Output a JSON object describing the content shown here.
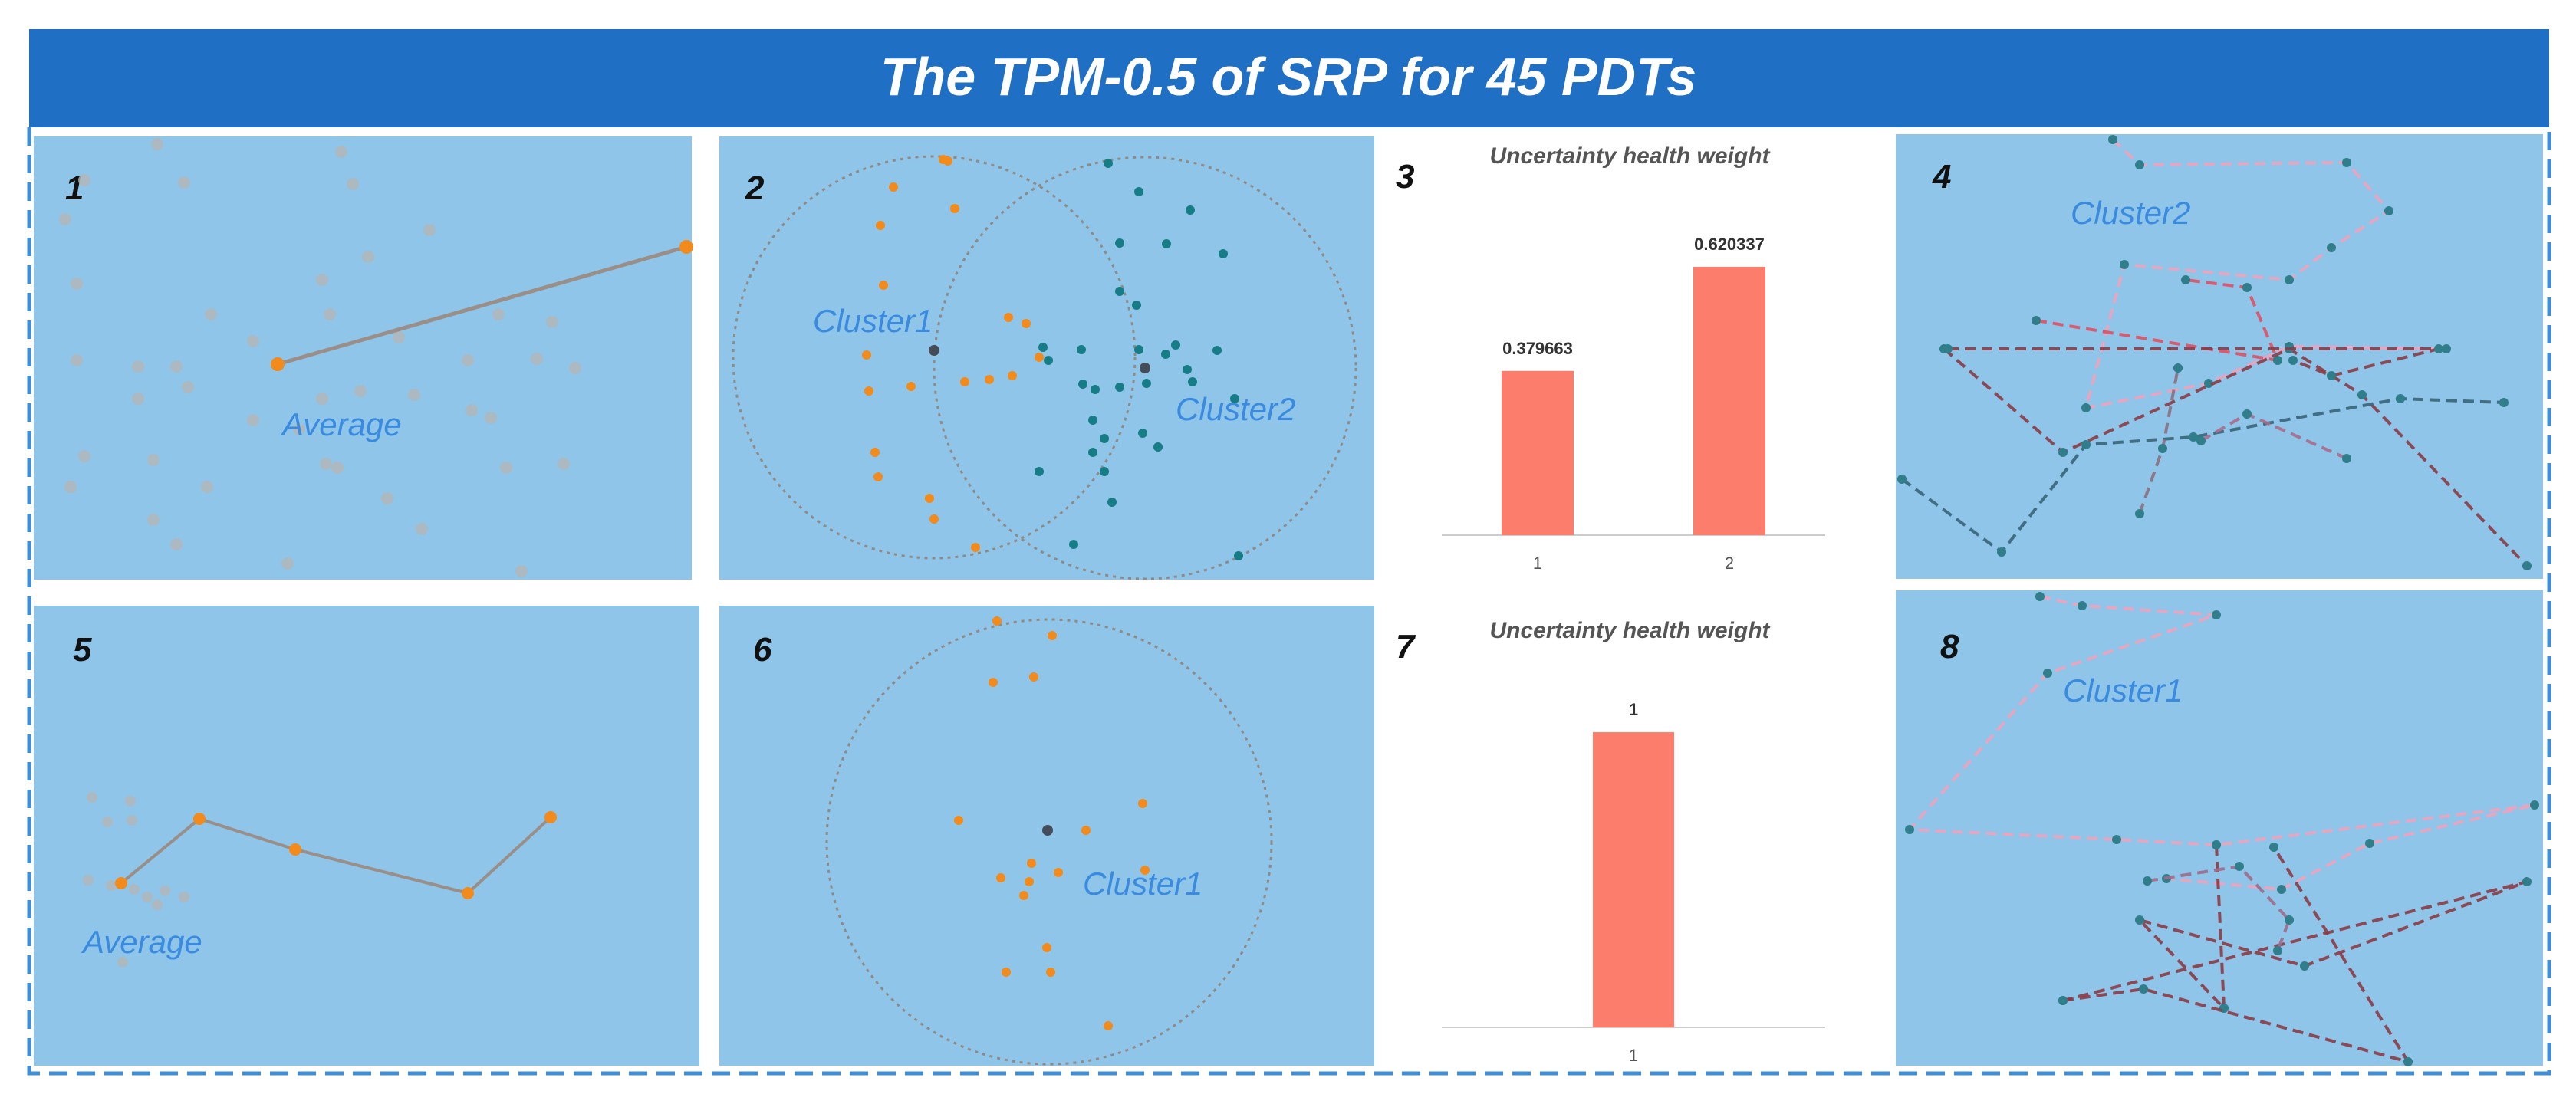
{
  "title": "The TPM-0.5 of SRP  for 45 PDTs",
  "colors": {
    "header": "#1f6fc4",
    "panel": "#8ec5e9",
    "panel_alt": "#93c8eb",
    "orange": "#f28a1c",
    "teal": "#167d86",
    "gray_point": "#b5b5b5",
    "gray_line": "#9a8f88",
    "bar": "#fc7d6c",
    "label_blue": "#3a8be0",
    "dashed_border": "#3f8fd8",
    "dark_center": "#444c58",
    "pink": "#f0a2bd",
    "red": "#e05064",
    "maroon": "#8b3a45",
    "slate": "#3a6478"
  },
  "panels": {
    "p1": {
      "number": "1",
      "label": "Average"
    },
    "p2": {
      "number": "2",
      "label_a": "Cluster1",
      "label_b": "Cluster2"
    },
    "p4": {
      "number": "4",
      "label": "Cluster2"
    },
    "p5": {
      "number": "5",
      "label": "Average"
    },
    "p6": {
      "number": "6",
      "label": "Cluster1"
    },
    "p8": {
      "number": "8",
      "label": "Cluster1"
    }
  },
  "chart_data": [
    {
      "id": "panel-3",
      "number": "3",
      "type": "bar",
      "title": "Uncertainty health weight",
      "categories": [
        "1",
        "2"
      ],
      "values": [
        0.379663,
        0.620337
      ],
      "value_labels": [
        "0.379663",
        "0.620337"
      ],
      "ylim": [
        0,
        0.7
      ],
      "xlabel": "",
      "ylabel": ""
    },
    {
      "id": "panel-7",
      "number": "7",
      "type": "bar",
      "title": "Uncertainty health weight",
      "categories": [
        "1"
      ],
      "values": [
        1
      ],
      "value_labels": [
        "1"
      ],
      "ylim": [
        0,
        1.13
      ],
      "xlabel": "",
      "ylabel": ""
    }
  ]
}
